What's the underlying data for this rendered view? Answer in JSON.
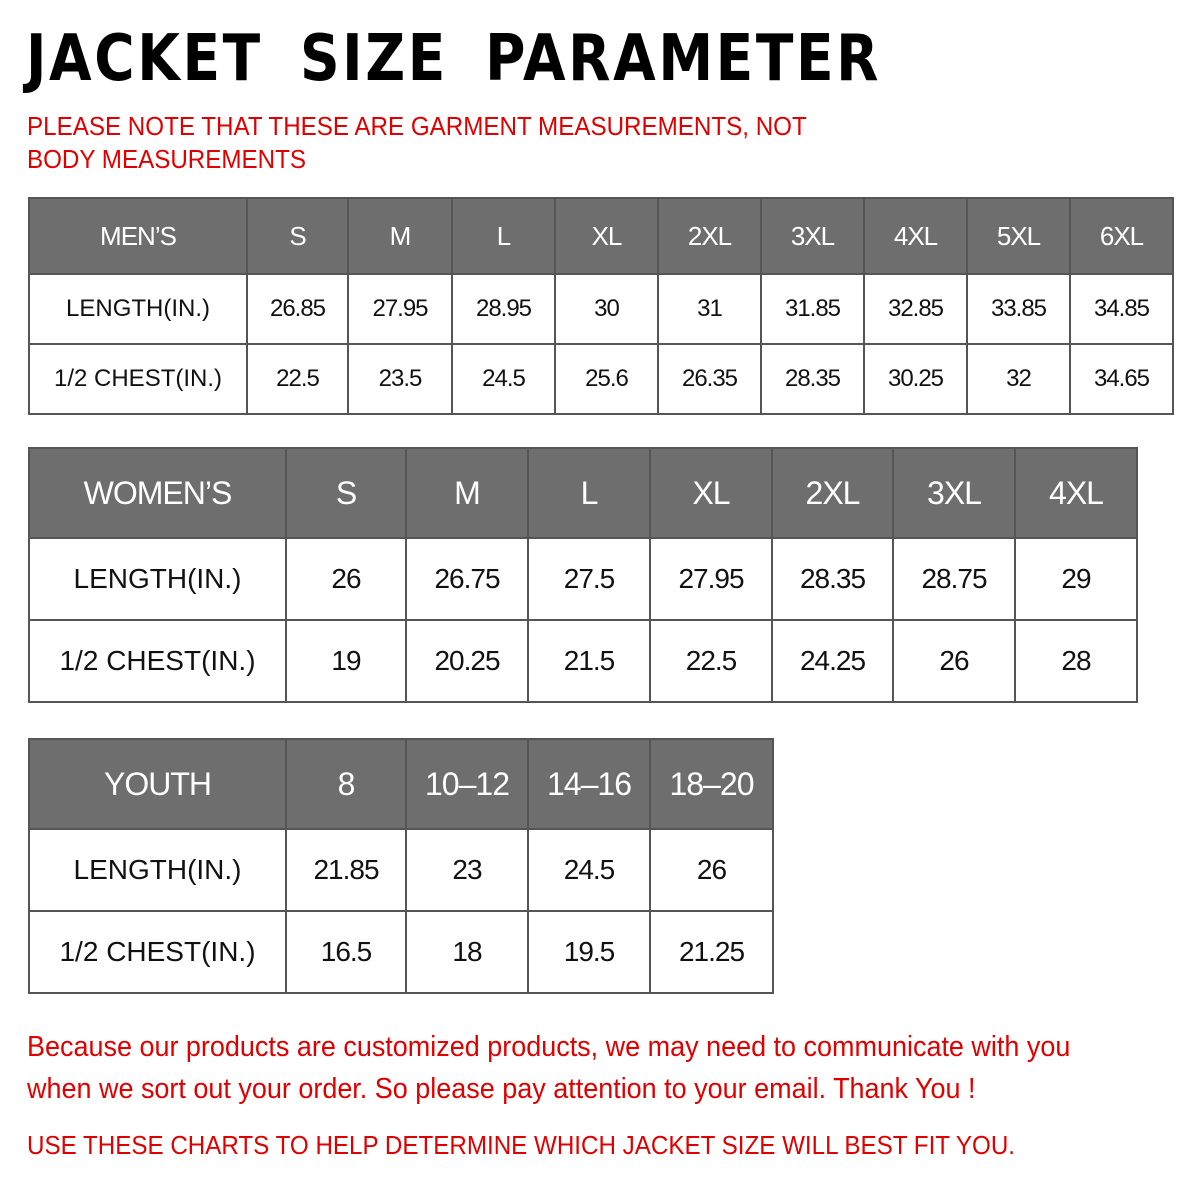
{
  "title": "JACKET  SIZE PARAMETER",
  "note": "PLEASE NOTE THAT THESE ARE GARMENT MEASUREMENTS, NOT BODY MEASUREMENTS",
  "colors": {
    "header_bg": "#6e6e6e",
    "note_red": "#e00000"
  },
  "tables": [
    {
      "id": "men",
      "header": [
        "MEN’S",
        "S",
        "M",
        "L",
        "XL",
        "2XL",
        "3XL",
        "4XL",
        "5XL",
        "6XL"
      ],
      "rows": [
        [
          "LENGTH(IN.)",
          "26.85",
          "27.95",
          "28.95",
          "30",
          "31",
          "31.85",
          "32.85",
          "33.85",
          "34.85"
        ],
        [
          "1/2 CHEST(IN.)",
          "22.5",
          "23.5",
          "24.5",
          "25.6",
          "26.35",
          "28.35",
          "30.25",
          "32",
          "34.65"
        ]
      ]
    },
    {
      "id": "women",
      "header": [
        "WOMEN’S",
        "S",
        "M",
        "L",
        "XL",
        "2XL",
        "3XL",
        "4XL"
      ],
      "rows": [
        [
          "LENGTH(IN.)",
          "26",
          "26.75",
          "27.5",
          "27.95",
          "28.35",
          "28.75",
          "29"
        ],
        [
          "1/2 CHEST(IN.)",
          "19",
          "20.25",
          "21.5",
          "22.5",
          "24.25",
          "26",
          "28"
        ]
      ]
    },
    {
      "id": "youth",
      "header": [
        "YOUTH",
        "8",
        "10–12",
        "14–16",
        "18–20"
      ],
      "rows": [
        [
          "LENGTH(IN.)",
          "21.85",
          "23",
          "24.5",
          "26"
        ],
        [
          "1/2 CHEST(IN.)",
          "16.5",
          "18",
          "19.5",
          "21.25"
        ]
      ]
    }
  ],
  "footer": {
    "message": "Because our products are customized products, we may need to communicate with you when we sort out your order. So please pay attention to your email. Thank You !",
    "advice": "USE THESE CHARTS TO HELP DETERMINE WHICH JACKET SIZE WILL BEST FIT YOU."
  }
}
